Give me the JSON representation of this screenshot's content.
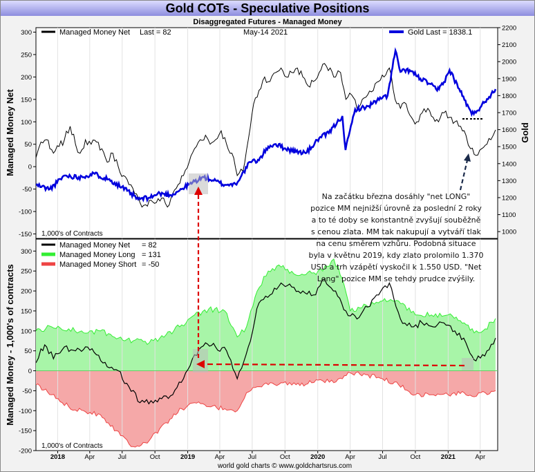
{
  "title": "Gold COTs - Speculative Positions",
  "subtitle": "Disaggregated Futures - Managed Money",
  "date_label": "May-14  2021",
  "footer": "world gold charts © www.goldchartsrus.com",
  "colors": {
    "title_bg_top": "#dcdcff",
    "title_bg_bottom": "#8d8dde",
    "frame_bg": "#f2f2f2",
    "gold": "#0000dd",
    "net": "#000000",
    "long_line": "#33ee33",
    "long_fill": "#a8f5a8",
    "short_line": "#ee4444",
    "short_fill": "#f5a8a8",
    "annotation": "#dd0000",
    "note_arrow": "#1a2a4a"
  },
  "chart_data": [
    {
      "type": "line",
      "panel": "top",
      "ylabel": "Managed Money Net",
      "y2label": "Gold",
      "units_note": "1,000's of Contracts",
      "ylim": [
        -160,
        310
      ],
      "y2lim": [
        960,
        2200
      ],
      "yticks": [
        -150,
        -100,
        -50,
        0,
        50,
        100,
        150,
        200,
        250,
        300
      ],
      "y2ticks": [
        1000,
        1100,
        1200,
        1300,
        1400,
        1500,
        1600,
        1700,
        1800,
        1900,
        2000,
        2100,
        2200
      ],
      "legend": [
        {
          "label": "Managed Money Net",
          "value_label": "Last = 82"
        },
        {
          "label": "Gold Last = 1838.1"
        }
      ],
      "series": [
        {
          "name": "Managed Money Net",
          "axis": "left",
          "x": [
            "2017-11-01",
            "2017-11-15",
            "2017-12-01",
            "2017-12-10",
            "2017-12-20",
            "2018-01-05",
            "2018-01-20",
            "2018-02-05",
            "2018-02-20",
            "2018-03-05",
            "2018-03-20",
            "2018-04-05",
            "2018-04-20",
            "2018-05-05",
            "2018-05-20",
            "2018-06-05",
            "2018-06-20",
            "2018-07-05",
            "2018-07-20",
            "2018-08-05",
            "2018-08-20",
            "2018-09-05",
            "2018-09-20",
            "2018-10-05",
            "2018-10-20",
            "2018-11-05",
            "2018-11-20",
            "2018-12-05",
            "2018-12-20",
            "2019-01-05",
            "2019-01-20",
            "2019-02-05",
            "2019-02-20",
            "2019-03-05",
            "2019-03-20",
            "2019-04-05",
            "2019-04-20",
            "2019-05-05",
            "2019-05-20",
            "2019-06-05",
            "2019-06-20",
            "2019-07-05",
            "2019-07-20",
            "2019-08-05",
            "2019-08-20",
            "2019-09-05",
            "2019-09-20",
            "2019-10-05",
            "2019-10-20",
            "2019-11-05",
            "2019-11-20",
            "2019-12-05",
            "2019-12-20",
            "2020-01-05",
            "2020-01-20",
            "2020-02-05",
            "2020-02-20",
            "2020-03-05",
            "2020-03-20",
            "2020-04-05",
            "2020-04-20",
            "2020-05-05",
            "2020-05-20",
            "2020-06-05",
            "2020-06-20",
            "2020-07-05",
            "2020-07-20",
            "2020-08-05",
            "2020-08-20",
            "2020-09-05",
            "2020-09-20",
            "2020-10-05",
            "2020-10-20",
            "2020-11-05",
            "2020-11-20",
            "2020-12-05",
            "2020-12-20",
            "2021-01-05",
            "2021-01-20",
            "2021-02-05",
            "2021-02-20",
            "2021-03-05",
            "2021-03-20",
            "2021-04-05",
            "2021-04-20",
            "2021-05-01",
            "2021-05-14"
          ],
          "values": [
            20,
            55,
            60,
            40,
            30,
            45,
            60,
            90,
            50,
            30,
            60,
            50,
            55,
            40,
            10,
            30,
            0,
            -20,
            -40,
            -60,
            -80,
            -85,
            -75,
            -80,
            -70,
            -90,
            -60,
            -40,
            -20,
            10,
            40,
            60,
            70,
            50,
            60,
            80,
            50,
            30,
            -20,
            -10,
            60,
            140,
            170,
            200,
            190,
            210,
            220,
            200,
            210,
            220,
            200,
            180,
            190,
            210,
            230,
            220,
            200,
            210,
            150,
            160,
            130,
            150,
            160,
            170,
            190,
            200,
            220,
            150,
            130,
            140,
            110,
            100,
            120,
            130,
            110,
            100,
            120,
            110,
            100,
            90,
            70,
            40,
            25,
            40,
            50,
            60,
            82
          ]
        },
        {
          "name": "Gold",
          "axis": "right",
          "x": [
            "2017-11-01",
            "2017-12-10",
            "2018-01-20",
            "2018-03-01",
            "2018-04-15",
            "2018-06-01",
            "2018-07-15",
            "2018-08-15",
            "2018-09-15",
            "2018-10-15",
            "2018-11-15",
            "2018-12-15",
            "2019-01-15",
            "2019-02-15",
            "2019-03-15",
            "2019-04-15",
            "2019-05-15",
            "2019-06-01",
            "2019-06-25",
            "2019-07-20",
            "2019-08-15",
            "2019-09-05",
            "2019-10-01",
            "2019-11-01",
            "2019-12-01",
            "2020-01-05",
            "2020-02-01",
            "2020-02-24",
            "2020-03-10",
            "2020-03-19",
            "2020-04-15",
            "2020-05-15",
            "2020-06-15",
            "2020-07-15",
            "2020-08-06",
            "2020-08-20",
            "2020-09-15",
            "2020-10-15",
            "2020-11-10",
            "2020-12-01",
            "2020-12-20",
            "2021-01-05",
            "2021-02-01",
            "2021-03-08",
            "2021-04-01",
            "2021-04-20",
            "2021-05-14"
          ],
          "values": [
            1275,
            1250,
            1330,
            1320,
            1340,
            1300,
            1240,
            1190,
            1200,
            1225,
            1215,
            1250,
            1290,
            1320,
            1300,
            1275,
            1280,
            1330,
            1410,
            1420,
            1500,
            1515,
            1490,
            1470,
            1465,
            1550,
            1580,
            1640,
            1680,
            1480,
            1720,
            1730,
            1770,
            1800,
            2065,
            1940,
            1950,
            1900,
            1870,
            1830,
            1880,
            1950,
            1840,
            1690,
            1730,
            1780,
            1838
          ]
        }
      ]
    },
    {
      "type": "area",
      "panel": "bottom",
      "ylabel": "Managed Money - 1,000's of contracts",
      "units_note": "1,000's of Contracts",
      "ylim": [
        -200,
        330
      ],
      "yticks": [
        -200,
        -150,
        -100,
        -50,
        0,
        50,
        100,
        150,
        200,
        250,
        300
      ],
      "xticks": [
        "2018",
        "Apr",
        "Jul",
        "Oct",
        "2019",
        "Apr",
        "Jul",
        "Oct",
        "2020",
        "Apr",
        "Jul",
        "Oct",
        "2021",
        "Apr"
      ],
      "legend": [
        {
          "label": "Managed Money Net",
          "value_label": "= 82"
        },
        {
          "label": "Managed Money Long",
          "value_label": "= 131"
        },
        {
          "label": "Managed Money Short",
          "value_label": "= -50"
        }
      ],
      "series": [
        {
          "name": "Managed Money Long",
          "x": [
            "2017-11-01",
            "2017-12-15",
            "2018-02-01",
            "2018-03-15",
            "2018-05-01",
            "2018-06-15",
            "2018-08-01",
            "2018-09-15",
            "2018-11-01",
            "2018-12-15",
            "2019-01-20",
            "2019-03-01",
            "2019-04-15",
            "2019-05-20",
            "2019-06-15",
            "2019-07-15",
            "2019-08-15",
            "2019-09-20",
            "2019-11-01",
            "2019-12-15",
            "2020-01-15",
            "2020-02-15",
            "2020-03-10",
            "2020-04-01",
            "2020-05-15",
            "2020-07-01",
            "2020-08-15",
            "2020-10-01",
            "2020-11-15",
            "2021-01-01",
            "2021-02-15",
            "2021-03-15",
            "2021-04-15",
            "2021-05-14"
          ],
          "values": [
            100,
            110,
            105,
            95,
            100,
            80,
            75,
            70,
            90,
            115,
            140,
            155,
            150,
            85,
            110,
            200,
            250,
            260,
            240,
            245,
            250,
            280,
            230,
            150,
            165,
            175,
            175,
            140,
            140,
            140,
            120,
            95,
            105,
            131
          ]
        },
        {
          "name": "Managed Money Short",
          "x": [
            "2017-11-01",
            "2017-12-15",
            "2018-02-01",
            "2018-03-15",
            "2018-05-01",
            "2018-06-15",
            "2018-08-01",
            "2018-09-15",
            "2018-11-01",
            "2018-12-15",
            "2019-01-20",
            "2019-03-01",
            "2019-04-15",
            "2019-05-20",
            "2019-06-15",
            "2019-07-15",
            "2019-08-15",
            "2019-09-20",
            "2019-11-01",
            "2019-12-15",
            "2020-01-15",
            "2020-02-15",
            "2020-03-10",
            "2020-04-01",
            "2020-05-15",
            "2020-07-01",
            "2020-08-15",
            "2020-10-01",
            "2020-11-15",
            "2021-01-01",
            "2021-02-15",
            "2021-03-15",
            "2021-04-15",
            "2021-05-14"
          ],
          "values": [
            -35,
            -60,
            -90,
            -100,
            -110,
            -150,
            -190,
            -175,
            -130,
            -95,
            -80,
            -90,
            -95,
            -100,
            -55,
            -40,
            -35,
            -30,
            -35,
            -30,
            -25,
            -30,
            -20,
            -5,
            -10,
            -20,
            -35,
            -60,
            -60,
            -60,
            -55,
            -65,
            -55,
            -50
          ]
        },
        {
          "name": "Managed Money Net",
          "x": [
            "2017-11-01",
            "2017-11-15",
            "2017-12-01",
            "2017-12-20",
            "2018-01-20",
            "2018-02-20",
            "2018-03-20",
            "2018-04-20",
            "2018-05-20",
            "2018-06-20",
            "2018-07-20",
            "2018-08-20",
            "2018-09-20",
            "2018-10-20",
            "2018-11-20",
            "2018-12-20",
            "2019-01-20",
            "2019-02-20",
            "2019-03-20",
            "2019-04-20",
            "2019-05-20",
            "2019-06-20",
            "2019-07-20",
            "2019-08-20",
            "2019-09-20",
            "2019-10-20",
            "2019-11-20",
            "2019-12-20",
            "2020-01-20",
            "2020-02-20",
            "2020-03-20",
            "2020-04-20",
            "2020-05-20",
            "2020-06-20",
            "2020-07-20",
            "2020-08-20",
            "2020-09-20",
            "2020-10-20",
            "2020-11-20",
            "2020-12-20",
            "2021-01-20",
            "2021-02-20",
            "2021-03-20",
            "2021-04-20",
            "2021-05-14"
          ],
          "values": [
            20,
            55,
            60,
            30,
            60,
            50,
            60,
            40,
            10,
            0,
            -40,
            -80,
            -75,
            -70,
            -60,
            -20,
            40,
            70,
            60,
            50,
            -20,
            60,
            170,
            190,
            220,
            210,
            200,
            190,
            230,
            200,
            150,
            130,
            160,
            190,
            220,
            130,
            110,
            120,
            110,
            120,
            100,
            70,
            25,
            50,
            82
          ]
        }
      ]
    }
  ],
  "annotation_text": [
    "Na začátku března dosáhly \"net LONG\"",
    "pozice MM nejnižší úrovně za poslední 2 roky",
    "a to té doby se konstantně zvyšují souběžně",
    "s cenou zlata. MM tak nakupují a vytváří tlak",
    "na cenu směrem vzhůru. Podobná situace",
    "byla v květnu 2019, kdy zlato prolomilo 1.370",
    "USD a trh vzápětí vyskočil k 1.550 USD. \"Net",
    "Long\" pozice MM se tehdy prudce zvýšily."
  ]
}
